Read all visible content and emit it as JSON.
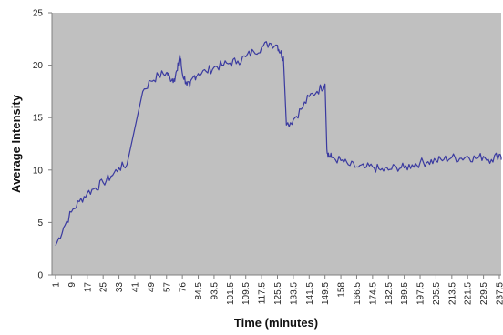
{
  "chart_data": {
    "type": "line",
    "title": "",
    "xlabel": "Time (minutes)",
    "ylabel": "Average Intensity",
    "ylim": [
      0,
      25
    ],
    "y_ticks": [
      "0",
      "5",
      "10",
      "15",
      "20",
      "25"
    ],
    "x_tick_labels": [
      "1",
      "9",
      "17",
      "25",
      "33",
      "41",
      "49",
      "57",
      "76",
      "84.5",
      "93.5",
      "101.5",
      "109.5",
      "117.5",
      "125.5",
      "133.5",
      "141.5",
      "149.5",
      "158",
      "166.5",
      "174.5",
      "182.5",
      "189.5",
      "197.5",
      "205.5",
      "213.5",
      "221.5",
      "229.5",
      "237.5"
    ],
    "grid": false,
    "legend": "none",
    "colors": {
      "line": "#3a3aa0",
      "plot_background": "#c0c0c0",
      "axis": "#808080"
    },
    "series": [
      {
        "x": [
          1,
          5,
          9,
          13,
          17,
          21,
          25,
          29,
          33,
          37,
          41,
          45,
          49,
          53,
          57,
          61,
          66,
          70,
          73,
          76,
          78,
          80,
          82,
          84.5,
          89,
          93.5,
          97.5,
          101.5,
          105.5,
          109.5,
          113.5,
          117.5,
          121.5,
          125.5,
          127,
          128.5,
          130,
          133.5,
          137.5,
          141.5,
          145.5,
          149.5,
          150.5,
          151.5,
          153,
          158,
          162,
          166.5,
          170.5,
          174.5,
          178.5,
          182.5,
          186,
          189.5,
          193.5,
          197.5,
          201.5,
          205.5,
          209.5,
          213.5,
          217.5,
          221.5,
          225.5,
          229.5,
          233.5,
          237.5,
          240
        ],
        "values": [
          2.8,
          4.5,
          6.0,
          7.0,
          7.8,
          8.3,
          8.8,
          9.4,
          10.2,
          10.5,
          14.0,
          17.5,
          18.5,
          19.0,
          19.3,
          18.8,
          18.7,
          19.5,
          21.0,
          19.2,
          18.4,
          17.9,
          18.9,
          19.2,
          19.4,
          19.8,
          20.0,
          20.2,
          20.4,
          20.8,
          21.3,
          21.7,
          22.1,
          21.9,
          21.2,
          20.8,
          14.3,
          14.8,
          15.8,
          17.0,
          17.5,
          18.2,
          12.0,
          11.4,
          11.2,
          10.9,
          10.5,
          10.3,
          10.2,
          10.3,
          10.0,
          10.0,
          10.3,
          10.2,
          10.5,
          10.7,
          10.8,
          10.9,
          11.0,
          11.2,
          11.1,
          11.3,
          11.1,
          11.3,
          11.0,
          11.5,
          11.2
        ]
      }
    ]
  }
}
